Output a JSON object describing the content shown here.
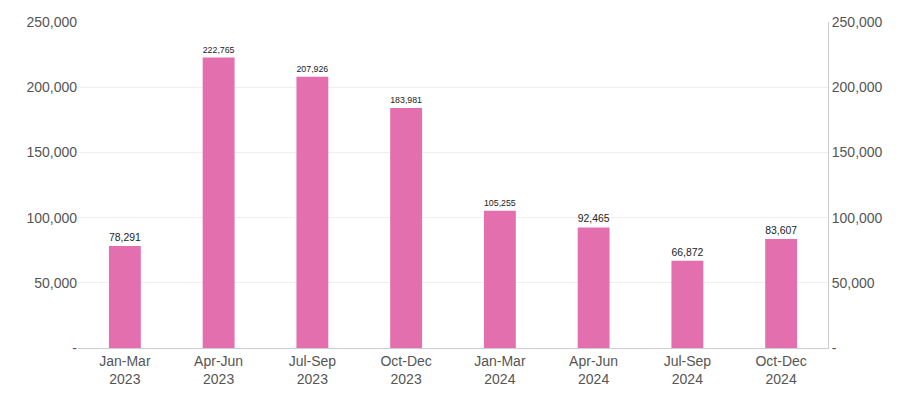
{
  "chart_data": {
    "type": "bar",
    "categories": [
      "Jan-Mar 2023",
      "Apr-Jun 2023",
      "Jul-Sep 2023",
      "Oct-Dec 2023",
      "Jan-Mar 2024",
      "Apr-Jun 2024",
      "Jul-Sep 2024",
      "Oct-Dec 2024"
    ],
    "values": [
      78291,
      222765,
      207926,
      183981,
      105255,
      92465,
      66872,
      83607
    ],
    "value_labels": [
      "78,291",
      "222,765",
      "207,926",
      "183,981",
      "105,255",
      "92,465",
      "66,872",
      "83,607"
    ],
    "data_labels": true,
    "color": "#e46fae",
    "ylim": [
      0,
      250000
    ],
    "yticks": [
      {
        "value": 0,
        "label": "-"
      },
      {
        "value": 50000,
        "label": "50,000"
      },
      {
        "value": 100000,
        "label": "100,000"
      },
      {
        "value": 150000,
        "label": "150,000"
      },
      {
        "value": 200000,
        "label": "200,000"
      },
      {
        "value": 250000,
        "label": "250,000"
      }
    ],
    "y2lim": [
      0,
      250000
    ],
    "y2ticks": [
      {
        "value": 0,
        "label": "-"
      },
      {
        "value": 50000,
        "label": "50,000"
      },
      {
        "value": 100000,
        "label": "100,000"
      },
      {
        "value": 150000,
        "label": "150,000"
      },
      {
        "value": 200000,
        "label": "200,000"
      },
      {
        "value": 250000,
        "label": "250,000"
      }
    ],
    "grid": true
  }
}
